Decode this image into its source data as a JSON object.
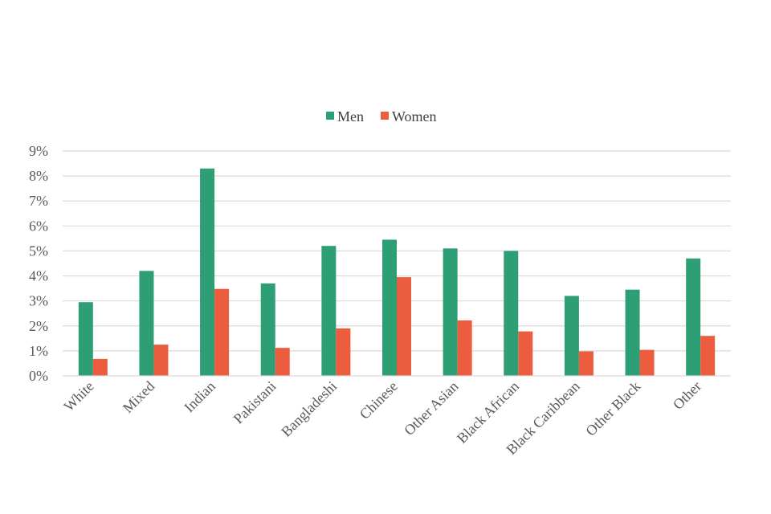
{
  "chart_data": {
    "type": "bar",
    "title": "",
    "xlabel": "",
    "ylabel": "",
    "ylim": [
      0,
      9
    ],
    "y_ticks": [
      "0%",
      "1%",
      "2%",
      "3%",
      "4%",
      "5%",
      "6%",
      "7%",
      "8%",
      "9%"
    ],
    "grid": true,
    "legend_position": "top-center",
    "categories": [
      "White",
      "Mixed",
      "Indian",
      "Pakistani",
      "Bangladeshi",
      "Chinese",
      "Other Asian",
      "Black African",
      "Black Caribbean",
      "Other Black",
      "Other"
    ],
    "series": [
      {
        "name": "Men",
        "color": "#2e9e74",
        "values": [
          2.95,
          4.2,
          8.3,
          3.7,
          5.2,
          5.45,
          5.1,
          5.0,
          3.2,
          3.45,
          4.7
        ]
      },
      {
        "name": "Women",
        "color": "#ec5c3e",
        "values": [
          0.68,
          1.25,
          3.48,
          1.12,
          1.9,
          3.95,
          2.22,
          1.78,
          0.98,
          1.04,
          1.6
        ]
      }
    ]
  }
}
